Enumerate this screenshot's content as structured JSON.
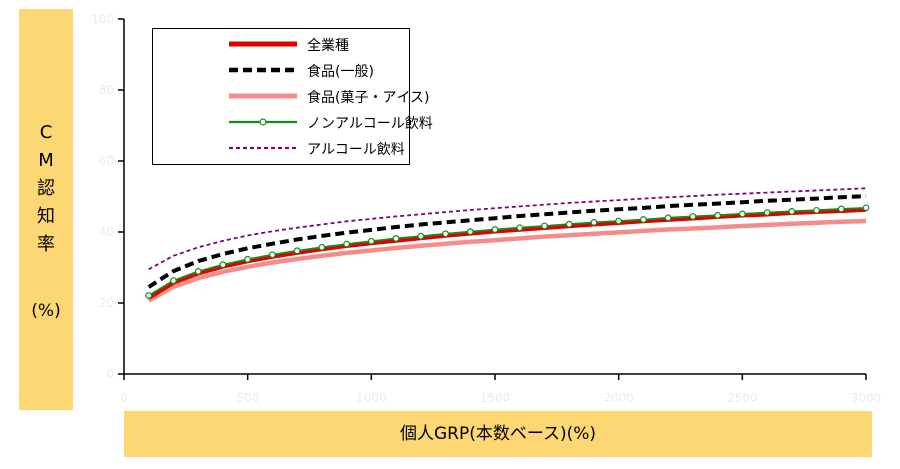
{
  "chart_data": {
    "type": "line",
    "title": "",
    "xlabel": "個人GRP(本数ベース)(%)",
    "ylabel": "CM認知率",
    "ylabel_unit": "(%)",
    "xlim": [
      0,
      3000
    ],
    "ylim": [
      0,
      100
    ],
    "x_ticks": [
      0,
      500,
      1000,
      1500,
      2000,
      2500,
      3000
    ],
    "y_ticks": [
      0,
      20,
      40,
      60,
      80,
      100
    ],
    "grid": false,
    "legend": "top-left",
    "x": [
      100,
      200,
      300,
      400,
      500,
      600,
      700,
      800,
      900,
      1000,
      1100,
      1200,
      1300,
      1400,
      1500,
      1600,
      1700,
      1800,
      1900,
      2000,
      2100,
      2200,
      2300,
      2400,
      2500,
      2600,
      2700,
      2800,
      2900,
      3000
    ],
    "series": [
      {
        "name": "全業種",
        "color": "#E00000",
        "style": "solid-thick",
        "values": [
          21.5,
          25.8,
          28.4,
          30.3,
          31.8,
          33.1,
          34.2,
          35.2,
          36.1,
          36.9,
          37.6,
          38.3,
          39.0,
          39.6,
          40.2,
          40.7,
          41.2,
          41.7,
          42.2,
          42.6,
          43.1,
          43.5,
          43.9,
          44.3,
          44.7,
          45.0,
          45.4,
          45.7,
          46.0,
          46.3
        ]
      },
      {
        "name": "食品(一般)",
        "color": "#000000",
        "style": "dashed-thick",
        "values": [
          24.5,
          29.0,
          31.8,
          33.8,
          35.4,
          36.7,
          37.9,
          38.9,
          39.8,
          40.6,
          41.4,
          42.1,
          42.7,
          43.3,
          43.9,
          44.5,
          45.0,
          45.5,
          46.0,
          46.4,
          46.8,
          47.3,
          47.7,
          48.0,
          48.4,
          48.8,
          49.1,
          49.4,
          49.8,
          50.1
        ]
      },
      {
        "name": "食品(菓子・アイス)",
        "color": "#F58C8C",
        "style": "solid-thick",
        "values": [
          20.7,
          24.6,
          27.0,
          28.8,
          30.2,
          31.4,
          32.4,
          33.3,
          34.1,
          34.8,
          35.5,
          36.1,
          36.7,
          37.2,
          37.7,
          38.2,
          38.7,
          39.1,
          39.5,
          39.9,
          40.3,
          40.7,
          41.0,
          41.3,
          41.7,
          42.0,
          42.3,
          42.6,
          42.9,
          43.1
        ]
      },
      {
        "name": "ノンアルコール飲料",
        "color": "#1A8A1A",
        "style": "solid-markers",
        "values": [
          22.1,
          26.3,
          28.9,
          30.8,
          32.3,
          33.6,
          34.7,
          35.7,
          36.6,
          37.4,
          38.2,
          38.8,
          39.5,
          40.1,
          40.7,
          41.2,
          41.7,
          42.2,
          42.7,
          43.1,
          43.5,
          44.0,
          44.4,
          44.7,
          45.1,
          45.5,
          45.8,
          46.1,
          46.5,
          46.8
        ]
      },
      {
        "name": "アルコール飲料",
        "color": "#800080",
        "style": "dashed-thin",
        "values": [
          29.5,
          33.3,
          35.7,
          37.5,
          39.0,
          40.2,
          41.2,
          42.1,
          43.0,
          43.7,
          44.4,
          45.0,
          45.6,
          46.2,
          46.7,
          47.2,
          47.7,
          48.2,
          48.6,
          49.0,
          49.4,
          49.8,
          50.1,
          50.5,
          50.8,
          51.1,
          51.4,
          51.7,
          52.0,
          52.3
        ]
      }
    ]
  }
}
